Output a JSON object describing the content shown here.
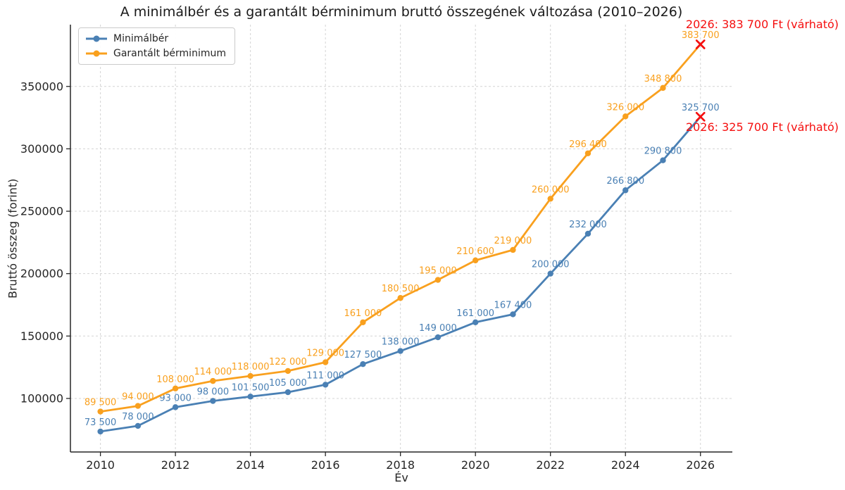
{
  "title": "A minimálbér és a garantált bérminimum bruttó összegének változása (2010–2026)",
  "xlabel": "Év",
  "ylabel": "Bruttó összeg (forint)",
  "legend": {
    "items": [
      {
        "label": "Minimálbér",
        "color": "#4A80B4"
      },
      {
        "label": "Garantált bérminimum",
        "color": "#F9A01E"
      }
    ]
  },
  "colors": {
    "minimalber": "#4A80B4",
    "garantalt": "#F9A01E",
    "highlight": "#F50F0F",
    "grid": "#d4d4d4",
    "axis": "#262626"
  },
  "chart_data": {
    "type": "line",
    "x": [
      2010,
      2011,
      2012,
      2013,
      2014,
      2015,
      2016,
      2017,
      2018,
      2019,
      2020,
      2021,
      2022,
      2023,
      2024,
      2025,
      2026
    ],
    "series": [
      {
        "name": "Minimálbér",
        "color": "#4A80B4",
        "values": [
          73500,
          78000,
          93000,
          98000,
          101500,
          105000,
          111000,
          127500,
          138000,
          149000,
          161000,
          167400,
          200000,
          232000,
          266800,
          290800,
          325700
        ]
      },
      {
        "name": "Garantált bérminimum",
        "color": "#F9A01E",
        "values": [
          89500,
          94000,
          108000,
          114000,
          118000,
          122000,
          129000,
          161000,
          180500,
          195000,
          210600,
          219000,
          260000,
          296400,
          326000,
          348800,
          383700
        ]
      }
    ],
    "title": "A minimálbér és a garantált bérminimum bruttó összegének változása (2010–2026)",
    "xlabel": "Év",
    "ylabel": "Bruttó összeg (forint)",
    "xticks": [
      2010,
      2012,
      2014,
      2016,
      2018,
      2020,
      2022,
      2024,
      2026
    ],
    "yticks": [
      100000,
      150000,
      200000,
      250000,
      300000,
      350000
    ],
    "xlim": [
      2009.2,
      2026.85
    ],
    "ylim": [
      57100,
      399500
    ],
    "grid": true,
    "legend_position": "upper-left",
    "last_point_marker": {
      "symbol": "x",
      "color": "#F50F0F",
      "year": 2026
    },
    "annotations": [
      {
        "text": "2026: 383 700 Ft (várható)",
        "color": "#F50F0F"
      },
      {
        "text": "2026: 325 700 Ft (várható)",
        "color": "#F50F0F"
      }
    ]
  }
}
